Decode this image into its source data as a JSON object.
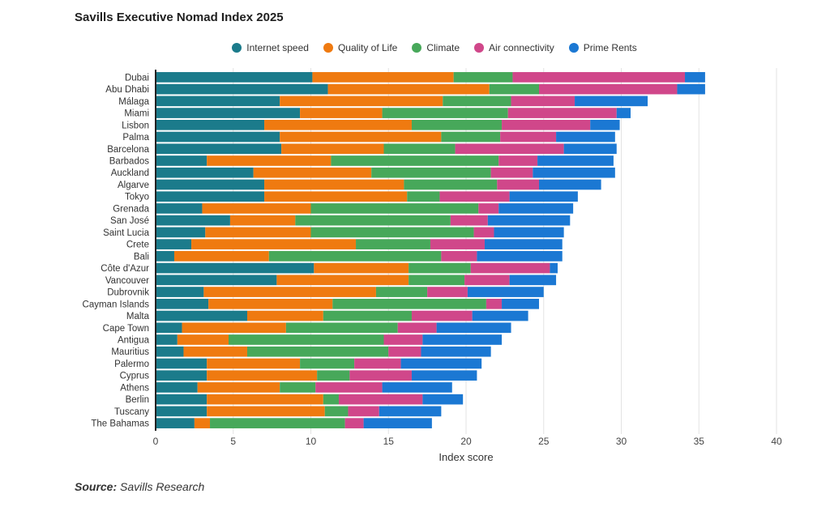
{
  "title": "Savills Executive Nomad Index 2025",
  "source": {
    "label": "Source:",
    "text": "Savills Research"
  },
  "chart_data": {
    "type": "bar",
    "orientation": "horizontal",
    "stacked": true,
    "xlabel": "Index score",
    "xlim": [
      0,
      40
    ],
    "xticks": [
      0,
      5,
      10,
      15,
      20,
      25,
      30,
      35,
      40
    ],
    "grid": "vertical",
    "legend_position": "top",
    "categories": [
      "Dubai",
      "Abu Dhabi",
      "Málaga",
      "Miami",
      "Lisbon",
      "Palma",
      "Barcelona",
      "Barbados",
      "Auckland",
      "Algarve",
      "Tokyo",
      "Grenada",
      "San José",
      "Saint Lucia",
      "Crete",
      "Bali",
      "Côte d'Azur",
      "Vancouver",
      "Dubrovnik",
      "Cayman Islands",
      "Malta",
      "Cape Town",
      "Antigua",
      "Mauritius",
      "Palermo",
      "Cyprus",
      "Athens",
      "Berlin",
      "Tuscany",
      "The Bahamas"
    ],
    "series": [
      {
        "name": "Internet speed",
        "color": "#1b7b8b",
        "values": [
          10.1,
          11.1,
          8.0,
          9.3,
          7.0,
          8.0,
          8.1,
          3.3,
          6.3,
          7.0,
          7.0,
          3.0,
          4.8,
          3.2,
          2.3,
          1.2,
          10.2,
          7.8,
          3.1,
          3.4,
          5.9,
          1.7,
          1.4,
          1.8,
          3.3,
          3.3,
          2.7,
          3.3,
          3.3,
          2.5
        ]
      },
      {
        "name": "Quality of Life",
        "color": "#ef7a10",
        "values": [
          9.1,
          10.4,
          10.5,
          5.3,
          9.5,
          10.4,
          6.6,
          8.0,
          7.6,
          9.0,
          9.2,
          7.0,
          4.2,
          6.8,
          10.6,
          6.1,
          6.1,
          8.5,
          11.1,
          8.0,
          4.9,
          6.7,
          3.3,
          4.1,
          6.0,
          7.1,
          5.3,
          7.5,
          7.6,
          1.0
        ]
      },
      {
        "name": "Climate",
        "color": "#47a85a",
        "values": [
          3.8,
          3.2,
          4.4,
          8.1,
          5.8,
          3.8,
          4.6,
          10.8,
          7.7,
          6.0,
          2.1,
          10.8,
          10.0,
          10.5,
          4.8,
          11.1,
          4.0,
          3.6,
          3.3,
          9.9,
          5.7,
          7.2,
          10.0,
          9.1,
          3.5,
          2.1,
          2.3,
          1.0,
          1.5,
          8.7
        ]
      },
      {
        "name": "Air connectivity",
        "color": "#d0478a",
        "values": [
          11.1,
          8.9,
          4.1,
          7.0,
          5.7,
          3.6,
          7.0,
          2.5,
          2.7,
          2.7,
          4.5,
          1.3,
          2.4,
          1.3,
          3.5,
          2.3,
          5.1,
          2.9,
          2.6,
          1.0,
          3.9,
          2.5,
          2.5,
          2.1,
          3.0,
          4.0,
          4.3,
          5.4,
          2.0,
          1.2
        ]
      },
      {
        "name": "Prime Rents",
        "color": "#1b78d3",
        "values": [
          1.3,
          1.8,
          4.7,
          0.9,
          1.9,
          3.8,
          3.4,
          4.9,
          5.3,
          4.0,
          4.4,
          4.8,
          5.3,
          4.5,
          5.0,
          5.5,
          0.5,
          3.0,
          4.9,
          2.4,
          3.6,
          4.8,
          5.1,
          4.5,
          5.2,
          4.2,
          4.5,
          2.6,
          4.0,
          4.4
        ]
      }
    ]
  }
}
